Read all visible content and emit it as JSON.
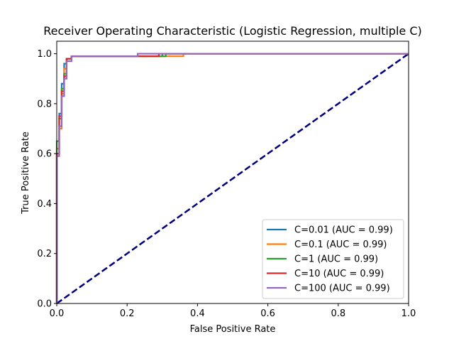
{
  "chart_data": {
    "type": "line",
    "title": "Receiver Operating Characteristic (Logistic Regression, multiple C)",
    "xlabel": "False Positive Rate",
    "ylabel": "True Positive Rate",
    "xlim": [
      0.0,
      1.0
    ],
    "ylim": [
      0.0,
      1.05
    ],
    "xticks": [
      "0.0",
      "0.2",
      "0.4",
      "0.6",
      "0.8",
      "1.0"
    ],
    "yticks": [
      "0.0",
      "0.2",
      "0.4",
      "0.6",
      "0.8",
      "1.0"
    ],
    "grid": false,
    "legend_position": "lower-right",
    "series": [
      {
        "name": "C=0.01 (AUC = 0.99)",
        "color": "#1f77b4",
        "x": [
          0.0,
          0.0,
          0.007,
          0.007,
          0.014,
          0.014,
          0.021,
          0.021,
          0.028,
          0.028,
          0.042,
          0.042,
          0.3,
          0.3,
          1.0
        ],
        "y": [
          0.0,
          0.6,
          0.6,
          0.76,
          0.76,
          0.88,
          0.88,
          0.96,
          0.96,
          0.98,
          0.98,
          0.99,
          0.99,
          1.0,
          1.0
        ]
      },
      {
        "name": "C=0.1 (AUC = 0.99)",
        "color": "#ff7f0e",
        "x": [
          0.0,
          0.0,
          0.007,
          0.007,
          0.014,
          0.014,
          0.021,
          0.021,
          0.028,
          0.028,
          0.042,
          0.042,
          0.36,
          0.36,
          1.0
        ],
        "y": [
          0.0,
          0.62,
          0.62,
          0.7,
          0.7,
          0.84,
          0.84,
          0.94,
          0.94,
          0.98,
          0.98,
          0.99,
          0.99,
          1.0,
          1.0
        ]
      },
      {
        "name": "C=1 (AUC = 0.99)",
        "color": "#2ca02c",
        "x": [
          0.0,
          0.0,
          0.007,
          0.007,
          0.014,
          0.014,
          0.021,
          0.021,
          0.028,
          0.028,
          0.042,
          0.042,
          0.31,
          0.31,
          1.0
        ],
        "y": [
          0.0,
          0.65,
          0.65,
          0.74,
          0.74,
          0.86,
          0.86,
          0.92,
          0.92,
          0.98,
          0.98,
          0.99,
          0.99,
          1.0,
          1.0
        ]
      },
      {
        "name": "C=10 (AUC = 0.99)",
        "color": "#d62728",
        "x": [
          0.0,
          0.0,
          0.007,
          0.007,
          0.014,
          0.014,
          0.021,
          0.021,
          0.028,
          0.028,
          0.042,
          0.042,
          0.29,
          0.29,
          1.0
        ],
        "y": [
          0.0,
          0.6,
          0.6,
          0.75,
          0.75,
          0.85,
          0.85,
          0.91,
          0.91,
          0.98,
          0.98,
          0.99,
          0.99,
          1.0,
          1.0
        ]
      },
      {
        "name": "C=100 (AUC = 0.99)",
        "color": "#9467bd",
        "x": [
          0.0,
          0.0,
          0.007,
          0.007,
          0.014,
          0.014,
          0.021,
          0.021,
          0.028,
          0.028,
          0.042,
          0.042,
          0.23,
          0.23,
          1.0
        ],
        "y": [
          0.0,
          0.59,
          0.59,
          0.71,
          0.71,
          0.83,
          0.83,
          0.9,
          0.9,
          0.97,
          0.97,
          0.99,
          0.99,
          1.0,
          1.0
        ]
      }
    ],
    "reference_line": {
      "x": [
        0.0,
        1.0
      ],
      "y": [
        0.0,
        1.0
      ],
      "color": "#000080",
      "style": "dashed"
    }
  }
}
